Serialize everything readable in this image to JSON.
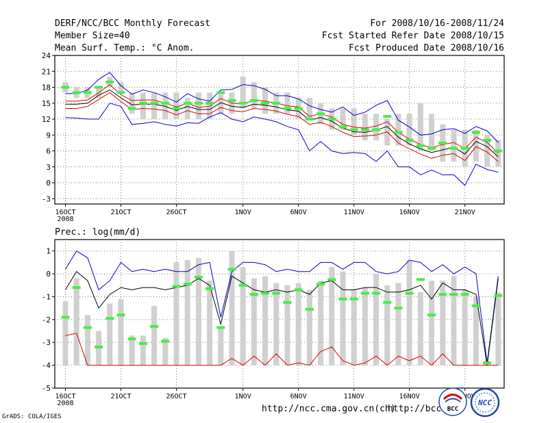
{
  "header": {
    "title": "DERF/NCC/BCC Monthly Forecast",
    "member_size": "Member Size=40",
    "variable": "Mean Surf. Temp.: °C Anom.",
    "period": "For 2008/10/16-2008/11/24",
    "started": "Fcst Started Refer Date 2008/10/15",
    "produced": "Fcst Produced Date 2008/10/16"
  },
  "footer": {
    "url1": "http://ncc.cma.gov.cn(ch)",
    "url2": "http://bcc.c",
    "grads": "GrADS: COLA/IGES",
    "logo_bcc": "BCC",
    "logo_ncc": "NCC"
  },
  "colors": {
    "bar": "#d0d0d0",
    "green": "#44ee44",
    "blue": "#0000cc",
    "red": "#dd0000",
    "black": "#000000",
    "grid": "#777777"
  },
  "chart_data": [
    {
      "type": "line",
      "title": "Mean Surf. Temp.: °C Anom.",
      "x": [
        1,
        2,
        3,
        4,
        5,
        6,
        7,
        8,
        9,
        10,
        11,
        12,
        13,
        14,
        15,
        16,
        17,
        18,
        19,
        20,
        21,
        22,
        23,
        24,
        25,
        26,
        27,
        28,
        29,
        30,
        31,
        32,
        33,
        34,
        35,
        36,
        37,
        38,
        39,
        40
      ],
      "xticks": [
        {
          "pos": 1,
          "label": "16OCT"
        },
        {
          "pos": 6,
          "label": "21OCT"
        },
        {
          "pos": 11,
          "label": "26OCT"
        },
        {
          "pos": 17,
          "label": "1NOV"
        },
        {
          "pos": 22,
          "label": "6NOV"
        },
        {
          "pos": 27,
          "label": "11NOV"
        },
        {
          "pos": 32,
          "label": "16NOV"
        },
        {
          "pos": 37,
          "label": "21NOV"
        }
      ],
      "year_label": "2008",
      "ylim": [
        -4,
        24
      ],
      "yticks": [
        -3,
        0,
        3,
        6,
        9,
        12,
        15,
        18,
        21,
        24
      ],
      "ensemble_range": [
        [
          17,
          19
        ],
        [
          16,
          18
        ],
        [
          16,
          18
        ],
        [
          16,
          18
        ],
        [
          18,
          20
        ],
        [
          17,
          19
        ],
        [
          13,
          17
        ],
        [
          12,
          17
        ],
        [
          12,
          17
        ],
        [
          12,
          17
        ],
        [
          12,
          17
        ],
        [
          12,
          16
        ],
        [
          12,
          17
        ],
        [
          12,
          17
        ],
        [
          13,
          17
        ],
        [
          13,
          17
        ],
        [
          14,
          20
        ],
        [
          14,
          19
        ],
        [
          13,
          18
        ],
        [
          13,
          17
        ],
        [
          13,
          17
        ],
        [
          12,
          16
        ],
        [
          12,
          16
        ],
        [
          11,
          15
        ],
        [
          10,
          14
        ],
        [
          10,
          14
        ],
        [
          9,
          14
        ],
        [
          8,
          13
        ],
        [
          8,
          13
        ],
        [
          7,
          12
        ],
        [
          7,
          13
        ],
        [
          7,
          13
        ],
        [
          6,
          15
        ],
        [
          6,
          13
        ],
        [
          4,
          11
        ],
        [
          4,
          10
        ],
        [
          3,
          10
        ],
        [
          4,
          10
        ],
        [
          3,
          9
        ],
        [
          3,
          8
        ]
      ],
      "member_green": [
        18,
        17,
        17,
        18,
        19,
        17,
        14,
        15,
        15,
        15,
        14,
        15,
        15,
        15,
        17,
        15.5,
        15,
        15.5,
        15,
        15,
        14,
        14,
        12,
        13,
        12,
        10.5,
        10,
        10,
        10,
        12.5,
        9.5,
        8,
        7,
        6.5,
        7.5,
        6.5,
        6.5,
        9.5,
        8,
        6
      ],
      "series": [
        {
          "name": "upper",
          "color": "#0000cc",
          "values": [
            16.8,
            16.8,
            17.5,
            19.5,
            20.8,
            18.3,
            16.7,
            17.5,
            17,
            16.2,
            15.2,
            16.8,
            15.8,
            15.4,
            17.5,
            17.6,
            18.5,
            18.3,
            17.6,
            16.4,
            16.4,
            15.8,
            14.5,
            13.8,
            13.3,
            14.3,
            12.7,
            13.3,
            14.6,
            15.5,
            11.8,
            10.5,
            9,
            9.2,
            10,
            10.2,
            9.3,
            10.6,
            9.8,
            7.6
          ]
        },
        {
          "name": "upper_inner",
          "color": "#dd0000",
          "values": [
            15.4,
            15.4,
            15.6,
            17,
            18.5,
            16.6,
            15.5,
            15.6,
            15.6,
            15,
            14.3,
            15,
            14.2,
            14.4,
            15.9,
            15,
            14.8,
            15.6,
            15.4,
            15,
            14.5,
            14.3,
            12.5,
            13,
            12.4,
            11,
            10.5,
            10.3,
            10.7,
            11.5,
            9.5,
            8.2,
            7.2,
            6.6,
            7.2,
            7.6,
            6.4,
            8.6,
            7.6,
            5.6
          ]
        },
        {
          "name": "mean",
          "color": "#000000",
          "values": [
            14.8,
            14.8,
            15,
            16.5,
            17.5,
            16,
            14.7,
            14.8,
            14.8,
            14.4,
            13.6,
            14.4,
            13.8,
            13.8,
            15.1,
            14.4,
            14.2,
            14.8,
            14.6,
            14.3,
            13.7,
            13.5,
            11.8,
            12.3,
            11.6,
            10.3,
            9.6,
            9.5,
            9.9,
            10.6,
            8.6,
            7.3,
            6.4,
            5.7,
            6.2,
            6.7,
            5.4,
            7.8,
            6.8,
            4.9
          ]
        },
        {
          "name": "lower_inner",
          "color": "#dd0000",
          "values": [
            14,
            14,
            14.4,
            15.7,
            17,
            15.3,
            13.8,
            14,
            13.9,
            13.6,
            12.8,
            13.6,
            13,
            13,
            14.2,
            13.6,
            13.4,
            14,
            13.8,
            13.5,
            12.9,
            12.5,
            11,
            11.4,
            10.6,
            9.5,
            8.7,
            8.8,
            9,
            9.6,
            7.5,
            6.4,
            5.4,
            4.6,
            5.2,
            5.5,
            4.2,
            6.8,
            5.8,
            4
          ]
        },
        {
          "name": "lower",
          "color": "#0000cc",
          "values": [
            12.3,
            12.2,
            12,
            12,
            15,
            14.4,
            11,
            11.2,
            11.5,
            11,
            10.7,
            11.3,
            11.2,
            12.4,
            13.2,
            12,
            11.5,
            12.4,
            12,
            11.5,
            10.6,
            10,
            6,
            7.8,
            6,
            5.5,
            5.7,
            5.5,
            4,
            6,
            3,
            3,
            1.5,
            2.4,
            1.5,
            1.5,
            -0.5,
            3.5,
            2.5,
            2
          ]
        }
      ]
    },
    {
      "type": "line",
      "title": "Prec.: log(mm/d)",
      "x": [
        1,
        2,
        3,
        4,
        5,
        6,
        7,
        8,
        9,
        10,
        11,
        12,
        13,
        14,
        15,
        16,
        17,
        18,
        19,
        20,
        21,
        22,
        23,
        24,
        25,
        26,
        27,
        28,
        29,
        30,
        31,
        32,
        33,
        34,
        35,
        36,
        37,
        38,
        39,
        40
      ],
      "xticks": [
        {
          "pos": 1,
          "label": "16OCT"
        },
        {
          "pos": 6,
          "label": "21OCT"
        },
        {
          "pos": 11,
          "label": "26OCT"
        },
        {
          "pos": 17,
          "label": "1NOV"
        },
        {
          "pos": 22,
          "label": "6NOV"
        },
        {
          "pos": 27,
          "label": "11NOV"
        },
        {
          "pos": 32,
          "label": "16NOV"
        },
        {
          "pos": 37,
          "label": "21NOV"
        }
      ],
      "year_label": "2008",
      "ylim": [
        -5,
        1.5
      ],
      "yticks": [
        -5,
        -4,
        -3,
        -2,
        -1,
        0,
        1
      ],
      "ensemble_range": [
        [
          -4,
          -1.2
        ],
        [
          -4,
          -0.2
        ],
        [
          -4,
          -1.8
        ],
        [
          -4,
          -2.5
        ],
        [
          -4,
          -1.3
        ],
        [
          -4,
          -1.1
        ],
        [
          -4,
          -2.7
        ],
        [
          -4,
          -2.7
        ],
        [
          -4,
          -1.4
        ],
        [
          -4,
          -2.8
        ],
        [
          -4,
          0.5
        ],
        [
          -4,
          0.6
        ],
        [
          -4,
          0.7
        ],
        [
          -4,
          -0.3
        ],
        [
          -4,
          -2.3
        ],
        [
          -4,
          1
        ],
        [
          -4,
          0.3
        ],
        [
          -4,
          -0.2
        ],
        [
          -4,
          -0.1
        ],
        [
          -4,
          -0.4
        ],
        [
          -4,
          -0.5
        ],
        [
          -4,
          -0.4
        ],
        [
          -4,
          -0.7
        ],
        [
          -4,
          -0.3
        ],
        [
          -4,
          0.3
        ],
        [
          -4,
          0.1
        ],
        [
          -4,
          -0.7
        ],
        [
          -4,
          -0.6
        ],
        [
          -4,
          0
        ],
        [
          -4,
          -0.5
        ],
        [
          -4,
          -0.4
        ],
        [
          -4,
          0.6
        ],
        [
          -4,
          -0.8
        ],
        [
          -4,
          -0.3
        ],
        [
          -4,
          -0.3
        ],
        [
          -4,
          -0.1
        ],
        [
          -4,
          -0.7
        ],
        [
          -4,
          -1
        ],
        [
          -4,
          -3.8
        ],
        [
          -4,
          -0.8
        ]
      ],
      "member_green": [
        -1.9,
        -0.6,
        -2.35,
        -3.2,
        -1.95,
        -1.8,
        -2.85,
        -3.05,
        -2.3,
        -2.95,
        -0.55,
        -0.45,
        -0.15,
        -0.65,
        -2.35,
        0.2,
        -0.5,
        -0.9,
        -0.85,
        -0.85,
        -1.25,
        -0.7,
        -1.55,
        -0.45,
        -0.25,
        -1.1,
        -1.1,
        -0.85,
        -0.85,
        -1.25,
        -1.5,
        -0.85,
        -0.25,
        -1.8,
        -0.9,
        -0.9,
        -0.9,
        -1.4,
        -3.9,
        -0.95
      ],
      "series": [
        {
          "name": "upper",
          "color": "#0000cc",
          "values": [
            0.2,
            1,
            0.7,
            -0.7,
            -0.3,
            0.5,
            0.1,
            0.2,
            0.1,
            0.2,
            0.1,
            0.1,
            0.4,
            0.5,
            -1.9,
            0.1,
            0.5,
            0.5,
            0.4,
            0.1,
            0.2,
            0.1,
            0.1,
            0.5,
            0.5,
            0.2,
            0.5,
            0.5,
            0.1,
            0,
            0.1,
            0.6,
            0.5,
            0.1,
            0.4,
            0,
            0.3,
            0,
            -3.9,
            -0.1
          ]
        },
        {
          "name": "mean",
          "color": "#000000",
          "values": [
            -0.7,
            0.1,
            -0.3,
            -1.5,
            -0.9,
            -0.6,
            -0.7,
            -0.6,
            -0.6,
            -0.7,
            -0.6,
            -0.5,
            -0.2,
            -0.5,
            -2.2,
            -0.1,
            -0.4,
            -0.7,
            -0.8,
            -0.7,
            -0.8,
            -0.7,
            -0.9,
            -0.4,
            -0.3,
            -0.7,
            -0.7,
            -0.6,
            -0.6,
            -0.8,
            -0.8,
            -0.7,
            -0.5,
            -1.1,
            -0.4,
            -0.7,
            -0.7,
            -0.9,
            -4,
            -0.2
          ]
        },
        {
          "name": "lower",
          "color": "#dd0000",
          "values": [
            -2.7,
            -2.6,
            -4,
            -4,
            -4,
            -4,
            -4,
            -4,
            -4,
            -4,
            -4,
            -4,
            -4,
            -4,
            -4,
            -3.7,
            -4,
            -3.6,
            -4,
            -3.5,
            -4,
            -3.9,
            -4,
            -3.4,
            -3.2,
            -3.8,
            -4,
            -3.9,
            -3.6,
            -4,
            -3.6,
            -3.8,
            -3.6,
            -4,
            -3.5,
            -4,
            -4,
            -4,
            -4,
            -4
          ]
        }
      ]
    }
  ]
}
